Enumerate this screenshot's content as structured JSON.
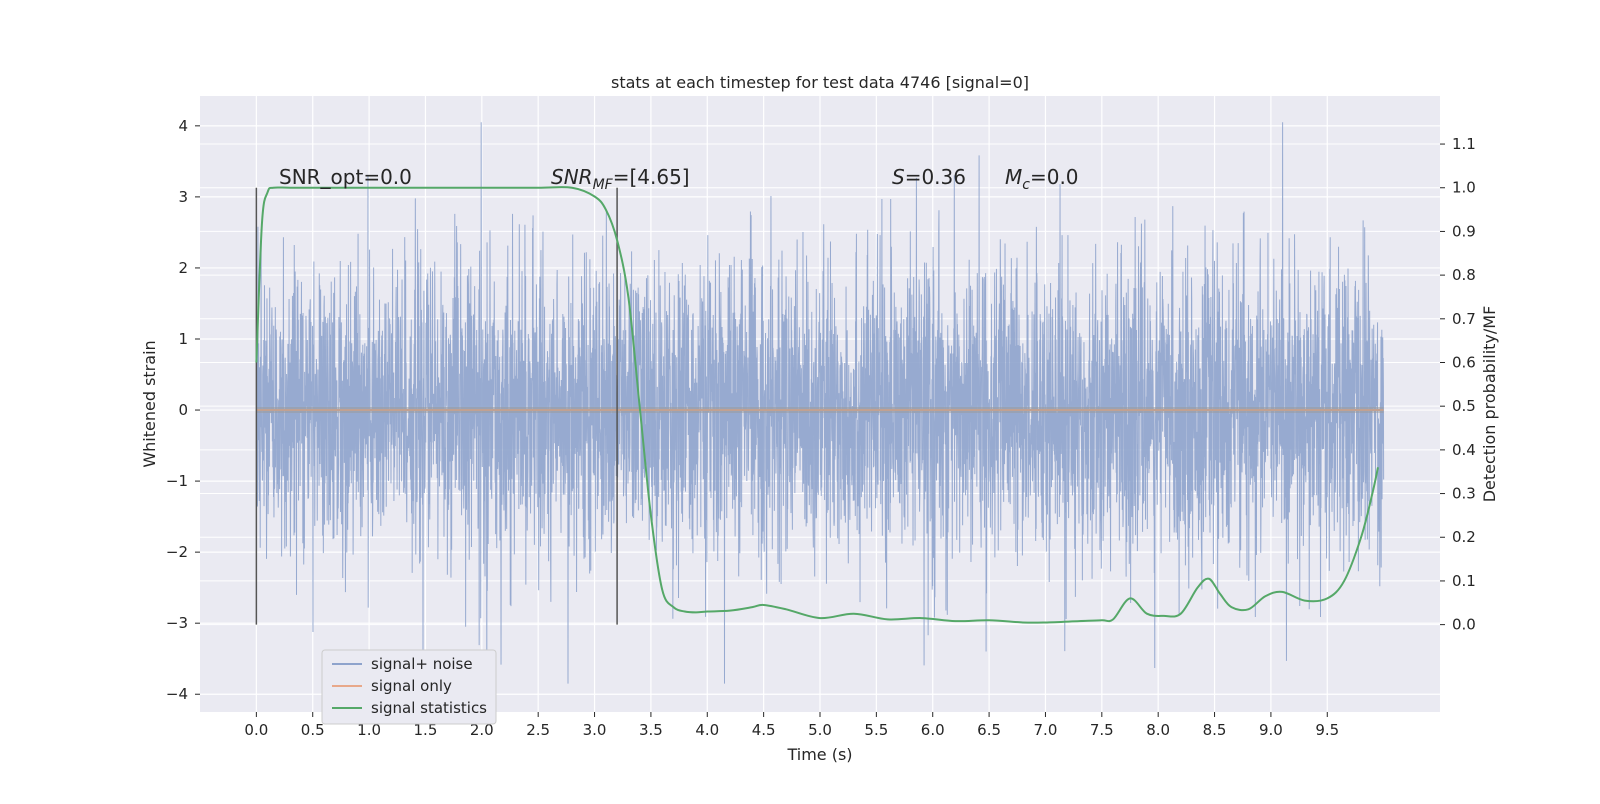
{
  "chart_data": {
    "type": "line",
    "title": "stats at each timestep for test data 4746 [signal=0]",
    "xlabel": "Time (s)",
    "ylabel": "Whitened strain",
    "ylabel_right": "Detection probability/MF",
    "xlim": [
      -0.5,
      10.5
    ],
    "ylim": [
      -4.25,
      4.42
    ],
    "ylim_right": [
      -0.2,
      1.21
    ],
    "x_ticks": [
      "0.0",
      "0.5",
      "1.0",
      "1.5",
      "2.0",
      "2.5",
      "3.0",
      "3.5",
      "4.0",
      "4.5",
      "5.0",
      "5.5",
      "6.0",
      "6.5",
      "7.0",
      "7.5",
      "8.0",
      "8.5",
      "9.0",
      "9.5"
    ],
    "y_ticks": [
      "4",
      "3",
      "2",
      "1",
      "0",
      "−1",
      "−2",
      "−3",
      "−4"
    ],
    "y_ticks_right": [
      "1.1",
      "1.0",
      "0.9",
      "0.8",
      "0.7",
      "0.6",
      "0.5",
      "0.4",
      "0.3",
      "0.2",
      "0.1",
      "0.0"
    ],
    "grid": true,
    "legend_position": "lower-left",
    "annotations": {
      "snr_opt": "SNR_opt=0.0",
      "snr_mf_base": "SNR",
      "snr_mf_sub": "MF",
      "snr_mf_value": "=[4.65]",
      "s_var": "S",
      "s_value": "=0.36",
      "mc_var": "M",
      "mc_sub": "c",
      "mc_value": "=0.0"
    },
    "vlines_x": [
      0.0,
      3.2
    ],
    "series": [
      {
        "name": "signal+ noise",
        "color": "#8ea3cc",
        "axis": "left",
        "style": "noise",
        "x_range": [
          0.0,
          10.0
        ],
        "envelope": {
          "typical_peak": 2.0,
          "max": 4.05,
          "min": -3.85,
          "band_sigma": 1.0
        }
      },
      {
        "name": "signal only",
        "color": "#e8a88a",
        "axis": "left",
        "x": [
          0.0,
          10.0
        ],
        "y": [
          0.0,
          0.0
        ]
      },
      {
        "name": "signal statistics",
        "color": "#55a868",
        "axis": "right",
        "x": [
          0.0,
          0.05,
          0.1,
          0.15,
          0.3,
          0.6,
          1.0,
          1.5,
          2.0,
          2.5,
          2.8,
          3.0,
          3.1,
          3.2,
          3.3,
          3.4,
          3.5,
          3.6,
          3.7,
          3.8,
          3.9,
          4.0,
          4.2,
          4.4,
          4.5,
          4.7,
          5.0,
          5.3,
          5.6,
          5.9,
          6.2,
          6.5,
          6.8,
          7.0,
          7.3,
          7.5,
          7.6,
          7.75,
          7.9,
          8.05,
          8.2,
          8.35,
          8.45,
          8.55,
          8.65,
          8.8,
          8.95,
          9.1,
          9.3,
          9.5,
          9.65,
          9.8,
          9.9,
          9.95
        ],
        "y": [
          0.6,
          0.92,
          0.99,
          1.0,
          1.0,
          1.0,
          1.0,
          1.0,
          1.0,
          1.0,
          1.0,
          0.98,
          0.95,
          0.88,
          0.75,
          0.5,
          0.25,
          0.08,
          0.04,
          0.03,
          0.028,
          0.03,
          0.032,
          0.04,
          0.045,
          0.035,
          0.015,
          0.025,
          0.012,
          0.015,
          0.008,
          0.01,
          0.005,
          0.005,
          0.008,
          0.01,
          0.012,
          0.06,
          0.025,
          0.02,
          0.025,
          0.085,
          0.105,
          0.07,
          0.04,
          0.035,
          0.065,
          0.075,
          0.055,
          0.06,
          0.1,
          0.2,
          0.3,
          0.36
        ]
      }
    ]
  }
}
